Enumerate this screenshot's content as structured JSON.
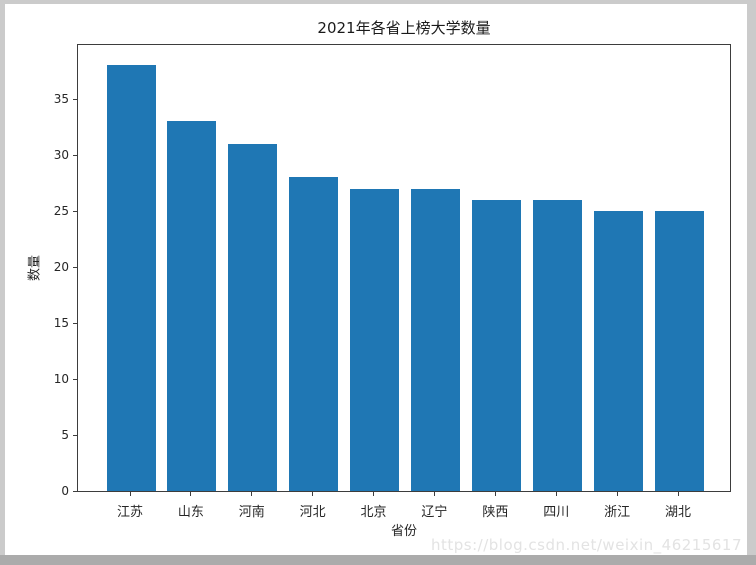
{
  "chart_data": {
    "type": "bar",
    "title": "2021年各省上榜大学数量",
    "xlabel": "省份",
    "ylabel": "数量",
    "categories": [
      "江苏",
      "山东",
      "河南",
      "河北",
      "北京",
      "辽宁",
      "陕西",
      "四川",
      "浙江",
      "湖北"
    ],
    "values": [
      38,
      33,
      31,
      28,
      27,
      27,
      26,
      26,
      25,
      25
    ],
    "ylim": [
      0,
      40
    ],
    "yticks": [
      0,
      5,
      10,
      15,
      20,
      25,
      30,
      35
    ],
    "bar_color": "#1f77b4",
    "grid": false,
    "legend": "none"
  },
  "watermark": "https://blog.csdn.net/weixin_46215617"
}
